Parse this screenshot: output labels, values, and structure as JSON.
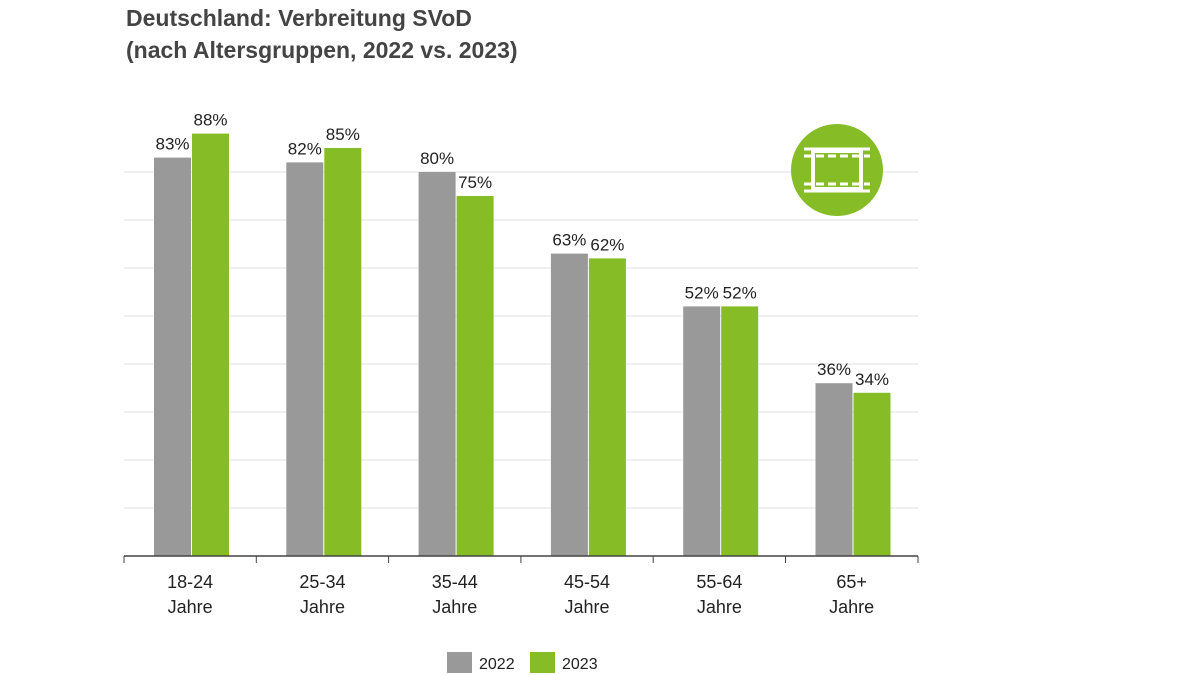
{
  "title_line1": "Deutschland: Verbreitung SVoD",
  "title_line2": "(nach Altersgruppen, 2022 vs. 2023)",
  "icon": "film-strip-icon",
  "chart_data": {
    "type": "bar",
    "categories": [
      [
        "18-24",
        "Jahre"
      ],
      [
        "25-34",
        "Jahre"
      ],
      [
        "35-44",
        "Jahre"
      ],
      [
        "45-54",
        "Jahre"
      ],
      [
        "55-64",
        "Jahre"
      ],
      [
        "65+",
        "Jahre"
      ]
    ],
    "series": [
      {
        "name": "2022",
        "color": "#999999",
        "values": [
          83,
          82,
          80,
          63,
          52,
          36
        ]
      },
      {
        "name": "2023",
        "color": "#86bc25",
        "values": [
          88,
          85,
          75,
          62,
          52,
          34
        ]
      }
    ],
    "value_suffix": "%",
    "ylim": [
      0,
      90
    ],
    "grid": true,
    "legend": "bottom"
  }
}
